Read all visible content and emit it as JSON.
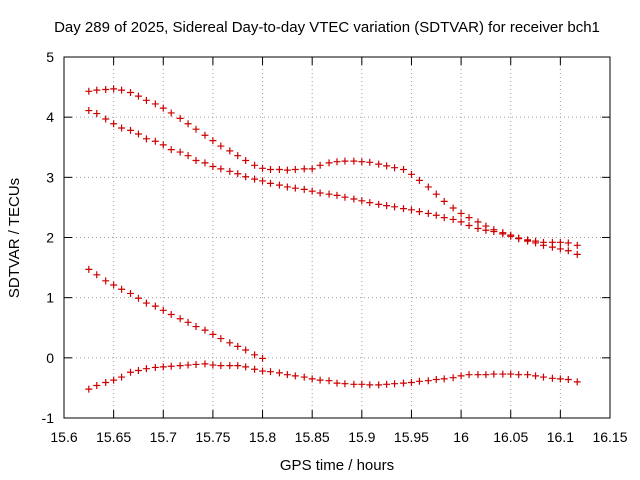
{
  "chart_data": {
    "type": "scatter",
    "title": "Day 289 of 2025, Sidereal Day-to-day VTEC variation (SDTVAR) for receiver bch1",
    "xlabel": "GPS time / hours",
    "ylabel": "SDTVAR / TECUs",
    "xlim": [
      15.6,
      16.15
    ],
    "ylim": [
      -1,
      5
    ],
    "xticks": [
      "15.6",
      "15.65",
      "15.7",
      "15.75",
      "15.8",
      "15.85",
      "15.9",
      "15.95",
      "16",
      "16.05",
      "16.1",
      "16.15"
    ],
    "yticks": [
      "-1",
      "0",
      "1",
      "2",
      "3",
      "4",
      "5"
    ],
    "grid": true,
    "marker": "+",
    "color": "#cc0000",
    "series": [
      {
        "name": "series-1",
        "x": [
          15.625,
          15.633,
          15.642,
          15.65,
          15.658,
          15.667,
          15.675,
          15.683,
          15.692,
          15.7,
          15.708,
          15.717,
          15.725,
          15.733,
          15.742,
          15.75,
          15.758,
          15.767,
          15.775,
          15.783,
          15.792,
          15.8,
          15.808,
          15.817,
          15.825,
          15.833,
          15.842,
          15.85,
          15.858,
          15.867,
          15.875,
          15.883,
          15.892,
          15.9,
          15.908,
          15.917,
          15.925,
          15.933,
          15.942,
          15.95,
          15.958,
          15.967,
          15.975,
          15.983,
          15.992,
          16.0,
          16.008,
          16.017,
          16.025,
          16.033,
          16.042,
          16.05,
          16.058,
          16.067,
          16.075,
          16.083,
          16.092,
          16.1,
          16.108,
          16.117
        ],
        "y": [
          4.43,
          4.45,
          4.46,
          4.47,
          4.45,
          4.41,
          4.35,
          4.28,
          4.22,
          4.15,
          4.07,
          3.98,
          3.89,
          3.8,
          3.7,
          3.61,
          3.52,
          3.44,
          3.36,
          3.28,
          3.2,
          3.15,
          3.13,
          3.13,
          3.12,
          3.13,
          3.14,
          3.14,
          3.2,
          3.24,
          3.26,
          3.27,
          3.27,
          3.26,
          3.25,
          3.22,
          3.19,
          3.16,
          3.13,
          3.05,
          2.95,
          2.84,
          2.72,
          2.6,
          2.49,
          2.4,
          2.33,
          2.26,
          2.19,
          2.13,
          2.08,
          2.04,
          1.99,
          1.96,
          1.94,
          1.92,
          1.92,
          1.92,
          1.91,
          1.87
        ]
      },
      {
        "name": "series-2",
        "x": [
          15.625,
          15.633,
          15.642,
          15.65,
          15.658,
          15.667,
          15.675,
          15.683,
          15.692,
          15.7,
          15.708,
          15.717,
          15.725,
          15.733,
          15.742,
          15.75,
          15.758,
          15.767,
          15.775,
          15.783,
          15.792,
          15.8,
          15.808,
          15.817,
          15.825,
          15.833,
          15.842,
          15.85,
          15.858,
          15.867,
          15.875,
          15.883,
          15.892,
          15.9,
          15.908,
          15.917,
          15.925,
          15.933,
          15.942,
          15.95,
          15.958,
          15.967,
          15.975,
          15.983,
          15.992,
          16.0,
          16.008,
          16.017,
          16.025,
          16.033,
          16.042,
          16.05,
          16.058,
          16.067,
          16.075,
          16.083,
          16.092,
          16.1,
          16.108,
          16.117
        ],
        "y": [
          4.11,
          4.06,
          3.97,
          3.89,
          3.82,
          3.78,
          3.72,
          3.64,
          3.6,
          3.54,
          3.46,
          3.42,
          3.36,
          3.28,
          3.24,
          3.18,
          3.14,
          3.1,
          3.06,
          3.01,
          2.97,
          2.94,
          2.9,
          2.87,
          2.84,
          2.82,
          2.8,
          2.77,
          2.74,
          2.72,
          2.7,
          2.67,
          2.64,
          2.61,
          2.58,
          2.55,
          2.53,
          2.51,
          2.48,
          2.46,
          2.43,
          2.4,
          2.37,
          2.33,
          2.3,
          2.26,
          2.2,
          2.15,
          2.12,
          2.1,
          2.06,
          2.02,
          1.98,
          1.94,
          1.91,
          1.87,
          1.84,
          1.81,
          1.78,
          1.72
        ]
      },
      {
        "name": "series-3",
        "x": [
          15.625,
          15.633,
          15.642,
          15.65,
          15.658,
          15.667,
          15.675,
          15.683,
          15.692,
          15.7,
          15.708,
          15.717,
          15.725,
          15.733,
          15.742,
          15.75,
          15.758,
          15.767,
          15.775,
          15.783,
          15.792,
          15.8
        ],
        "y": [
          1.47,
          1.38,
          1.28,
          1.21,
          1.14,
          1.07,
          0.99,
          0.91,
          0.86,
          0.79,
          0.72,
          0.65,
          0.59,
          0.52,
          0.46,
          0.39,
          0.32,
          0.25,
          0.19,
          0.13,
          0.05,
          -0.01
        ]
      },
      {
        "name": "series-4",
        "x": [
          15.625,
          15.633,
          15.642,
          15.65,
          15.658,
          15.667,
          15.675,
          15.683,
          15.692,
          15.7,
          15.708,
          15.717,
          15.725,
          15.733,
          15.742,
          15.75,
          15.758,
          15.767,
          15.775,
          15.783,
          15.792,
          15.8,
          15.808,
          15.817,
          15.825,
          15.833,
          15.842,
          15.85,
          15.858,
          15.867,
          15.875,
          15.883,
          15.892,
          15.9,
          15.908,
          15.917,
          15.925,
          15.933,
          15.942,
          15.95,
          15.958,
          15.967,
          15.975,
          15.983,
          15.992,
          16.0,
          16.008,
          16.017,
          16.025,
          16.033,
          16.042,
          16.05,
          16.058,
          16.067,
          16.075,
          16.083,
          16.092,
          16.1,
          16.108,
          16.117
        ],
        "y": [
          -0.52,
          -0.46,
          -0.41,
          -0.37,
          -0.32,
          -0.24,
          -0.21,
          -0.18,
          -0.16,
          -0.15,
          -0.14,
          -0.13,
          -0.12,
          -0.11,
          -0.1,
          -0.12,
          -0.13,
          -0.13,
          -0.13,
          -0.15,
          -0.19,
          -0.22,
          -0.23,
          -0.25,
          -0.28,
          -0.3,
          -0.32,
          -0.35,
          -0.37,
          -0.38,
          -0.42,
          -0.43,
          -0.44,
          -0.44,
          -0.45,
          -0.45,
          -0.44,
          -0.43,
          -0.42,
          -0.41,
          -0.39,
          -0.38,
          -0.36,
          -0.35,
          -0.33,
          -0.3,
          -0.28,
          -0.28,
          -0.28,
          -0.27,
          -0.27,
          -0.27,
          -0.28,
          -0.28,
          -0.3,
          -0.32,
          -0.34,
          -0.35,
          -0.36,
          -0.4
        ]
      }
    ]
  }
}
